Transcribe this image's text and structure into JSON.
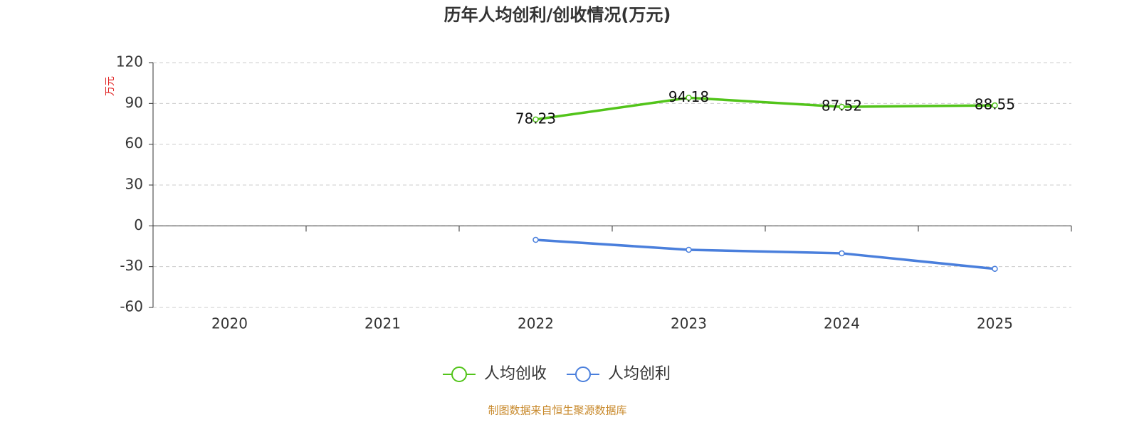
{
  "chart_data": {
    "type": "line",
    "title": "历年人均创利/创收情况(万元)",
    "y_label": "万元",
    "categories": [
      "2020",
      "2021",
      "2022",
      "2023",
      "2024",
      "2025"
    ],
    "series": [
      {
        "name": "人均创收",
        "color": "#52c41a",
        "values": [
          null,
          null,
          78.23,
          94.18,
          87.52,
          88.55
        ],
        "show_labels": true
      },
      {
        "name": "人均创利",
        "color": "#4a7fdc",
        "values": [
          null,
          null,
          -10.3,
          -17.6,
          -20.2,
          -31.6
        ],
        "show_labels": false
      }
    ],
    "ylim": [
      -60,
      120
    ],
    "yticks": [
      -60,
      -30,
      0,
      30,
      60,
      90,
      120
    ],
    "grid": true,
    "legend": "bottom",
    "source": "制图数据来自恒生聚源数据库"
  }
}
